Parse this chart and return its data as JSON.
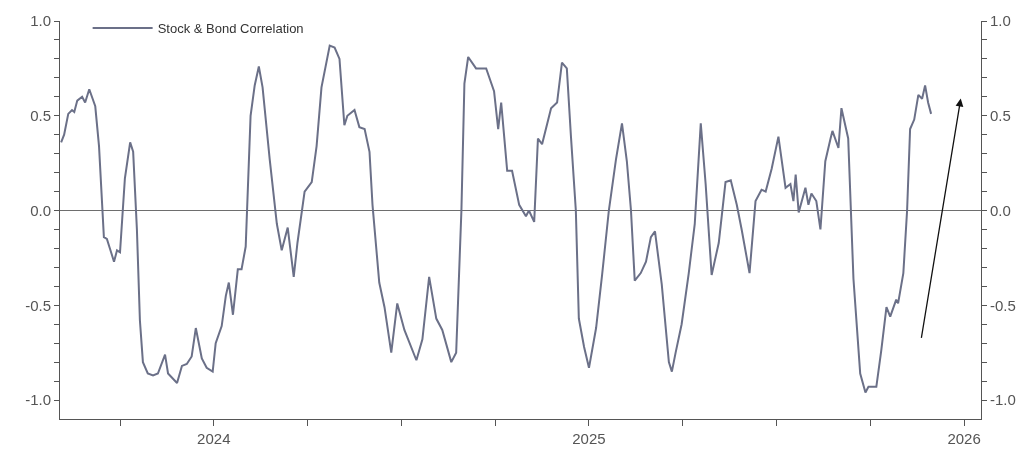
{
  "chart_data": {
    "type": "line",
    "legend": "top left",
    "grid": false,
    "x": [
      2023.593,
      2023.601,
      2023.612,
      2023.622,
      2023.628,
      2023.636,
      2023.649,
      2023.657,
      2023.668,
      2023.684,
      2023.694,
      2023.707,
      2023.715,
      2023.723,
      2023.734,
      2023.742,
      2023.75,
      2023.763,
      2023.777,
      2023.785,
      2023.795,
      2023.803,
      2023.811,
      2023.824,
      2023.838,
      2023.851,
      2023.87,
      2023.878,
      2023.902,
      2023.915,
      2023.928,
      2023.941,
      2023.952,
      2023.968,
      2023.981,
      2023.997,
      2024.005,
      2024.021,
      2024.032,
      2024.04,
      2024.051,
      2024.064,
      2024.074,
      2024.085,
      2024.098,
      2024.109,
      2024.12,
      2024.13,
      2024.149,
      2024.168,
      2024.181,
      2024.197,
      2024.213,
      2024.223,
      2024.242,
      2024.261,
      2024.274,
      2024.287,
      2024.309,
      2024.322,
      2024.335,
      2024.348,
      2024.356,
      2024.375,
      2024.388,
      2024.402,
      2024.415,
      2024.423,
      2024.441,
      2024.455,
      2024.473,
      2024.489,
      2024.508,
      2024.54,
      2024.556,
      2024.574,
      2024.593,
      2024.609,
      2024.633,
      2024.646,
      2024.66,
      2024.668,
      2024.678,
      2024.699,
      2024.726,
      2024.747,
      2024.758,
      2024.766,
      2024.774,
      2024.782,
      2024.795,
      2024.814,
      2024.832,
      2024.84,
      2024.854,
      2024.864,
      2024.875,
      2024.899,
      2024.915,
      2024.928,
      2024.941,
      2024.952,
      2024.965,
      2024.973,
      2024.987,
      2025.0,
      2025.019,
      2025.035,
      2025.053,
      2025.072,
      2025.088,
      2025.101,
      2025.112,
      2025.122,
      2025.138,
      2025.152,
      2025.165,
      2025.176,
      2025.194,
      2025.213,
      2025.221,
      2025.231,
      2025.247,
      2025.266,
      2025.282,
      2025.298,
      2025.311,
      2025.327,
      2025.346,
      2025.364,
      2025.378,
      2025.394,
      2025.407,
      2025.428,
      2025.444,
      2025.46,
      2025.471,
      2025.487,
      2025.505,
      2025.524,
      2025.537,
      2025.545,
      2025.551,
      2025.559,
      2025.577,
      2025.585,
      2025.593,
      2025.606,
      2025.617,
      2025.63,
      2025.644,
      2025.649,
      2025.665,
      2025.673,
      2025.691,
      2025.705,
      2025.723,
      2025.737,
      2025.745,
      2025.766,
      2025.779,
      2025.793,
      2025.803,
      2025.819,
      2025.824,
      2025.838,
      2025.848,
      2025.856,
      2025.867,
      2025.878,
      2025.888,
      2025.896,
      2025.904,
      2025.912
    ],
    "series": [
      {
        "name": "Stock & Bond Correlation",
        "color": "#6b7088",
        "values": [
          0.36,
          0.4,
          0.51,
          0.53,
          0.52,
          0.58,
          0.6,
          0.57,
          0.64,
          0.55,
          0.34,
          -0.14,
          -0.15,
          -0.2,
          -0.27,
          -0.21,
          -0.22,
          0.17,
          0.36,
          0.31,
          -0.1,
          -0.58,
          -0.8,
          -0.86,
          -0.87,
          -0.86,
          -0.76,
          -0.86,
          -0.91,
          -0.82,
          -0.81,
          -0.77,
          -0.62,
          -0.78,
          -0.83,
          -0.85,
          -0.7,
          -0.61,
          -0.45,
          -0.38,
          -0.55,
          -0.31,
          -0.31,
          -0.19,
          0.5,
          0.66,
          0.76,
          0.65,
          0.27,
          -0.07,
          -0.21,
          -0.09,
          -0.35,
          -0.17,
          0.1,
          0.15,
          0.34,
          0.65,
          0.87,
          0.86,
          0.8,
          0.45,
          0.5,
          0.53,
          0.44,
          0.43,
          0.31,
          0.03,
          -0.38,
          -0.51,
          -0.75,
          -0.49,
          -0.63,
          -0.79,
          -0.68,
          -0.35,
          -0.57,
          -0.63,
          -0.8,
          -0.75,
          0.0,
          0.67,
          0.81,
          0.75,
          0.75,
          0.63,
          0.43,
          0.57,
          0.39,
          0.21,
          0.21,
          0.03,
          -0.03,
          0.0,
          -0.06,
          0.38,
          0.35,
          0.54,
          0.57,
          0.78,
          0.75,
          0.39,
          0.0,
          -0.57,
          -0.72,
          -0.83,
          -0.62,
          -0.34,
          0.0,
          0.27,
          0.46,
          0.26,
          0.0,
          -0.37,
          -0.33,
          -0.27,
          -0.14,
          -0.11,
          -0.39,
          -0.8,
          -0.85,
          -0.75,
          -0.6,
          -0.33,
          -0.07,
          0.46,
          0.14,
          -0.34,
          -0.17,
          0.15,
          0.16,
          0.03,
          -0.1,
          -0.33,
          0.05,
          0.11,
          0.1,
          0.22,
          0.39,
          0.12,
          0.14,
          0.05,
          0.19,
          -0.01,
          0.12,
          0.03,
          0.09,
          0.05,
          -0.1,
          0.26,
          0.38,
          0.42,
          0.33,
          0.54,
          0.38,
          -0.36,
          -0.86,
          -0.96,
          -0.93,
          -0.93,
          -0.74,
          -0.51,
          -0.56,
          -0.47,
          -0.49,
          -0.33,
          0.0,
          0.43,
          0.48,
          0.61,
          0.59,
          0.66,
          0.57,
          0.51
        ]
      }
    ],
    "xlim": [
      2023.59,
      2026.045
    ],
    "xticks": [
      {
        "value": 2023.75,
        "label": null
      },
      2024,
      {
        "value": 2024.25,
        "label": null
      },
      {
        "value": 2024.5,
        "label": null
      },
      {
        "value": 2024.75,
        "label": null
      },
      2025,
      {
        "value": 2025.25,
        "label": null
      },
      {
        "value": 2025.5,
        "label": null
      },
      {
        "value": 2025.75,
        "label": null
      },
      2026
    ],
    "ylim": [
      -1.1,
      1.0
    ],
    "yticks": [
      {
        "value": -1.0,
        "label": "-1.0"
      },
      {
        "value": -0.9,
        "label": null
      },
      {
        "value": -0.8,
        "label": null
      },
      {
        "value": -0.7,
        "label": null
      },
      {
        "value": -0.6,
        "label": null
      },
      {
        "value": -0.5,
        "label": "-0.5"
      },
      {
        "value": -0.4,
        "label": null
      },
      {
        "value": -0.3,
        "label": null
      },
      {
        "value": -0.2,
        "label": null
      },
      {
        "value": -0.1,
        "label": null
      },
      {
        "value": 0.0,
        "label": "0.0"
      },
      {
        "value": 0.1,
        "label": null
      },
      {
        "value": 0.2,
        "label": null
      },
      {
        "value": 0.3,
        "label": null
      },
      {
        "value": 0.4,
        "label": null
      },
      {
        "value": 0.5,
        "label": "0.5"
      },
      {
        "value": 0.6,
        "label": null
      },
      {
        "value": 0.7,
        "label": null
      },
      {
        "value": 0.8,
        "label": null
      },
      {
        "value": 0.9,
        "label": null
      },
      {
        "value": 1.0,
        "label": "1.0"
      }
    ],
    "y2lim": [
      -1.1,
      1.0
    ],
    "y2ticks": [
      {
        "value": -1.0,
        "label": "-1.0"
      },
      {
        "value": -0.9,
        "label": null
      },
      {
        "value": -0.8,
        "label": null
      },
      {
        "value": -0.7,
        "label": null
      },
      {
        "value": -0.6,
        "label": null
      },
      {
        "value": -0.5,
        "label": "-0.5"
      },
      {
        "value": -0.4,
        "label": null
      },
      {
        "value": -0.3,
        "label": null
      },
      {
        "value": -0.2,
        "label": null
      },
      {
        "value": -0.1,
        "label": null
      },
      {
        "value": 0.0,
        "label": "0.0"
      },
      {
        "value": 0.1,
        "label": null
      },
      {
        "value": 0.2,
        "label": null
      },
      {
        "value": 0.3,
        "label": null
      },
      {
        "value": 0.4,
        "label": null
      },
      {
        "value": 0.5,
        "label": "0.5"
      },
      {
        "value": 0.6,
        "label": null
      },
      {
        "value": 0.7,
        "label": null
      },
      {
        "value": 0.8,
        "label": null
      },
      {
        "value": 0.9,
        "label": null
      },
      {
        "value": 1.0,
        "label": "1.0"
      }
    ],
    "ref_lines": [
      {
        "axis": "y",
        "value": 0,
        "color": "#6e6e6e"
      }
    ],
    "marker": "none",
    "line_style": "solid"
  }
}
